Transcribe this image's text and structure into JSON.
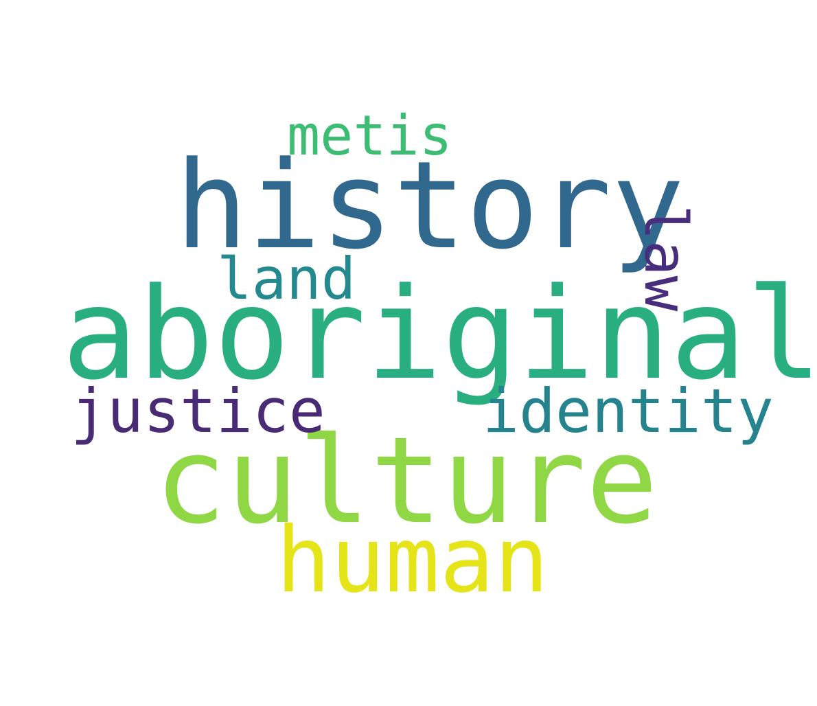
{
  "wordcloud": {
    "words": [
      {
        "id": "history",
        "text": "history",
        "color": "#30688e"
      },
      {
        "id": "aboriginal",
        "text": "aboriginal",
        "color": "#29af7f"
      },
      {
        "id": "culture",
        "text": "culture",
        "color": "#8fd744"
      },
      {
        "id": "human",
        "text": "human",
        "color": "#e5e419"
      },
      {
        "id": "metis",
        "text": "metis",
        "color": "#3dbc74"
      },
      {
        "id": "land",
        "text": "land",
        "color": "#23898e"
      },
      {
        "id": "justice",
        "text": "justice",
        "color": "#482a75"
      },
      {
        "id": "identity",
        "text": "identity",
        "color": "#25838e"
      },
      {
        "id": "law",
        "text": "law",
        "color": "#472d7b",
        "orientation": "vertical"
      }
    ]
  }
}
